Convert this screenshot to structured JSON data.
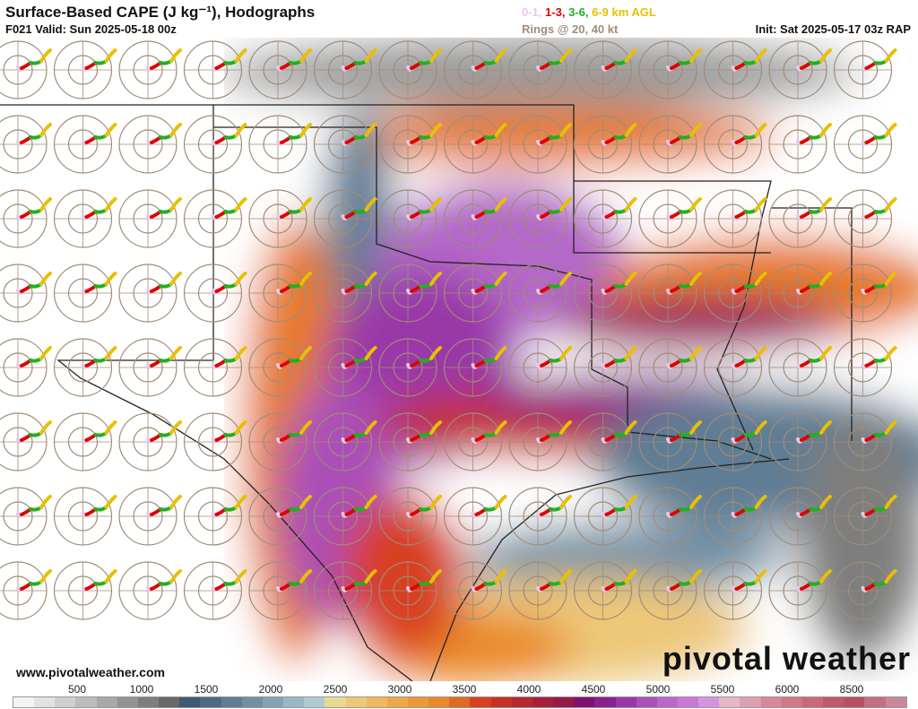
{
  "header": {
    "title": "Surface-Based CAPE (J kg⁻¹), Hodographs",
    "valid": "F021 Valid: Sun 2025-05-18 00z",
    "legend": [
      {
        "text": "0-1,",
        "color": "#e8c8e8"
      },
      {
        "text": "1-3,",
        "color": "#e00000"
      },
      {
        "text": "3-6,",
        "color": "#20b020"
      },
      {
        "text": "6-9 km AGL",
        "color": "#e8c000"
      }
    ],
    "rings": "Rings @ 20, 40 kt",
    "init": "Init: Sat 2025-05-17 03z RAP"
  },
  "footer": {
    "site": "www.pivotalweather.com",
    "brand": "pivotal weather"
  },
  "colorbar": {
    "labels": [
      "500",
      "1000",
      "1500",
      "2000",
      "2500",
      "3000",
      "3500",
      "4000",
      "4500",
      "5000",
      "5500",
      "6000",
      "8500"
    ],
    "colors": [
      "#f4f4f4",
      "#e2e2e2",
      "#cfcfcf",
      "#bdbdbd",
      "#a8a8a8",
      "#939393",
      "#7e7e7e",
      "#696969",
      "#3f5a74",
      "#4d6a84",
      "#5f7d94",
      "#7290a4",
      "#86a3b4",
      "#9ab7c4",
      "#aecbd2",
      "#e8d890",
      "#edc878",
      "#f0b860",
      "#eea848",
      "#ec9838",
      "#ea8828",
      "#e06a20",
      "#d84020",
      "#c83028",
      "#b82830",
      "#a82038",
      "#981848",
      "#801070",
      "#8a2090",
      "#9a38a8",
      "#aa50b8",
      "#ba68c8",
      "#c878d4",
      "#d494e0",
      "#e4b8c8",
      "#dca0b0",
      "#d88898",
      "#d07888",
      "#c86878",
      "#c05868",
      "#b85060",
      "#c07080",
      "#c88898"
    ]
  },
  "map": {
    "colors": {
      "water": "#ffffff",
      "border": "#222222",
      "county": "#888888",
      "ring": "#a08c78"
    }
  }
}
